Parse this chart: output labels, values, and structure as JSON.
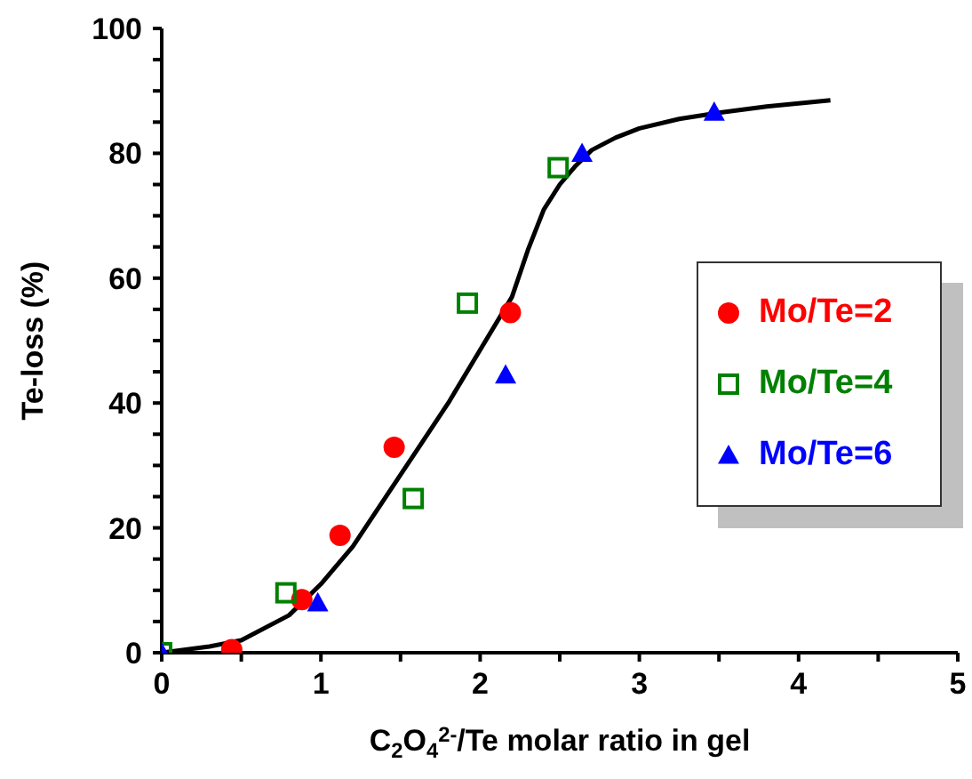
{
  "chart_data": {
    "type": "scatter",
    "xlabel": "C$_{2}$O$_{4}$$^{2-}$/Te molar ratio in gel",
    "ylabel": "Te-loss (%)",
    "xlim": [
      0,
      5
    ],
    "ylim": [
      0,
      100
    ],
    "xticks": [
      0,
      {
        "value": 0.5,
        "label": null
      },
      1,
      {
        "value": 1.5,
        "label": null
      },
      2,
      {
        "value": 2.5,
        "label": null
      },
      3,
      {
        "value": 3.5,
        "label": null
      },
      4,
      {
        "value": 4.5,
        "label": null
      },
      5
    ],
    "yticks": [
      0,
      {
        "value": 5,
        "label": null
      },
      {
        "value": 10,
        "label": null
      },
      {
        "value": 15,
        "label": null
      },
      20,
      {
        "value": 25,
        "label": null
      },
      {
        "value": 30,
        "label": null
      },
      {
        "value": 35,
        "label": null
      },
      40,
      {
        "value": 45,
        "label": null
      },
      {
        "value": 50,
        "label": null
      },
      {
        "value": 55,
        "label": null
      },
      60,
      {
        "value": 65,
        "label": null
      },
      {
        "value": 70,
        "label": null
      },
      {
        "value": 75,
        "label": null
      },
      80,
      {
        "value": 85,
        "label": null
      },
      {
        "value": 90,
        "label": null
      },
      {
        "value": 95,
        "label": null
      },
      100
    ],
    "grid": false,
    "legend": "right",
    "series": [
      {
        "type": "line",
        "color": "#000000",
        "marker": "none",
        "line_style": "solid",
        "x": [
          0,
          0.3,
          0.5,
          0.8,
          1.0,
          1.2,
          1.5,
          1.8,
          2.0,
          2.2,
          2.3,
          2.4,
          2.5,
          2.6,
          2.7,
          2.85,
          3.0,
          3.25,
          3.5,
          3.8,
          4.2
        ],
        "values": [
          0,
          1,
          2,
          6,
          11,
          17,
          28.5,
          40,
          48.5,
          57,
          64.5,
          71,
          75,
          78,
          80.5,
          82.5,
          84,
          85.5,
          86.5,
          87.5,
          88.5
        ]
      },
      {
        "name": "Mo/Te=2",
        "color": "#ff0000",
        "marker": "circle",
        "x": [
          0.44,
          0.88,
          1.12,
          1.46,
          2.19
        ],
        "values": [
          0.5,
          8.5,
          18.8,
          32.9,
          54.5
        ]
      },
      {
        "name": "Mo/Te=4",
        "color": "#008000",
        "marker": "square",
        "x": [
          0,
          0.78,
          1.58,
          1.92,
          2.49
        ],
        "values": [
          0,
          9.6,
          24.7,
          56,
          77.7
        ]
      },
      {
        "name": "Mo/Te=6",
        "color": "#0000ff",
        "marker": "triangle",
        "x": [
          0,
          0.98,
          2.16,
          2.64,
          3.47
        ],
        "values": [
          0,
          8,
          44.5,
          80,
          86.6
        ]
      }
    ]
  }
}
